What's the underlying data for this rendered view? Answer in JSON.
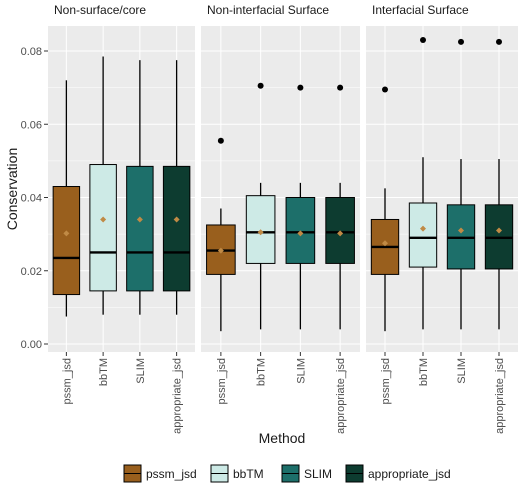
{
  "chart_data": {
    "type": "box",
    "ylabel": "Conservation",
    "xlabel": "Method",
    "ylim": [
      0,
      0.085
    ],
    "yticks": [
      0.0,
      0.02,
      0.04,
      0.06,
      0.08
    ],
    "ytick_labels": [
      "0.00",
      "0.02",
      "0.04",
      "0.06",
      "0.08"
    ],
    "categories": [
      "pssm_jsd",
      "bbTM",
      "SLIM",
      "appropriate_jsd"
    ],
    "colors": {
      "pssm_jsd": "#995f1d",
      "bbTM": "#cdeae6",
      "SLIM": "#1d6f6a",
      "appropriate_jsd": "#0d3c30",
      "mean_marker": "#c08a45",
      "panel_bg": "#ebebeb",
      "grid": "#ffffff"
    },
    "grid": true,
    "legend_position": "bottom",
    "legend": [
      "pssm_jsd",
      "bbTM",
      "SLIM",
      "appropriate_jsd"
    ],
    "panels": [
      {
        "title": "Non-surface/core",
        "boxes": [
          {
            "method": "pssm_jsd",
            "whisker_low": 0.0075,
            "q1": 0.0135,
            "median": 0.0235,
            "q3": 0.043,
            "whisker_high": 0.072,
            "mean": 0.0302,
            "outliers": []
          },
          {
            "method": "bbTM",
            "whisker_low": 0.008,
            "q1": 0.0145,
            "median": 0.025,
            "q3": 0.049,
            "whisker_high": 0.0785,
            "mean": 0.034,
            "outliers": []
          },
          {
            "method": "SLIM",
            "whisker_low": 0.008,
            "q1": 0.0145,
            "median": 0.025,
            "q3": 0.0485,
            "whisker_high": 0.0775,
            "mean": 0.034,
            "outliers": []
          },
          {
            "method": "appropriate_jsd",
            "whisker_low": 0.008,
            "q1": 0.0145,
            "median": 0.025,
            "q3": 0.0485,
            "whisker_high": 0.0775,
            "mean": 0.034,
            "outliers": []
          }
        ]
      },
      {
        "title": "Non-interfacial Surface",
        "boxes": [
          {
            "method": "pssm_jsd",
            "whisker_low": 0.0035,
            "q1": 0.019,
            "median": 0.0255,
            "q3": 0.0325,
            "whisker_high": 0.037,
            "mean": 0.0255,
            "outliers": [
              0.0555
            ]
          },
          {
            "method": "bbTM",
            "whisker_low": 0.004,
            "q1": 0.022,
            "median": 0.0305,
            "q3": 0.0405,
            "whisker_high": 0.044,
            "mean": 0.0305,
            "outliers": [
              0.0705
            ]
          },
          {
            "method": "SLIM",
            "whisker_low": 0.004,
            "q1": 0.022,
            "median": 0.0305,
            "q3": 0.04,
            "whisker_high": 0.044,
            "mean": 0.0302,
            "outliers": [
              0.07
            ]
          },
          {
            "method": "appropriate_jsd",
            "whisker_low": 0.004,
            "q1": 0.022,
            "median": 0.0305,
            "q3": 0.04,
            "whisker_high": 0.044,
            "mean": 0.0302,
            "outliers": [
              0.07
            ]
          }
        ]
      },
      {
        "title": "Interfacial Surface",
        "boxes": [
          {
            "method": "pssm_jsd",
            "whisker_low": 0.0035,
            "q1": 0.019,
            "median": 0.0265,
            "q3": 0.034,
            "whisker_high": 0.0425,
            "mean": 0.0275,
            "outliers": [
              0.0695
            ]
          },
          {
            "method": "bbTM",
            "whisker_low": 0.004,
            "q1": 0.021,
            "median": 0.029,
            "q3": 0.0385,
            "whisker_high": 0.051,
            "mean": 0.0315,
            "outliers": [
              0.083
            ]
          },
          {
            "method": "SLIM",
            "whisker_low": 0.004,
            "q1": 0.0205,
            "median": 0.029,
            "q3": 0.038,
            "whisker_high": 0.0505,
            "mean": 0.031,
            "outliers": [
              0.0825
            ]
          },
          {
            "method": "appropriate_jsd",
            "whisker_low": 0.004,
            "q1": 0.0205,
            "median": 0.029,
            "q3": 0.038,
            "whisker_high": 0.0505,
            "mean": 0.031,
            "outliers": [
              0.0825
            ]
          }
        ]
      }
    ]
  }
}
